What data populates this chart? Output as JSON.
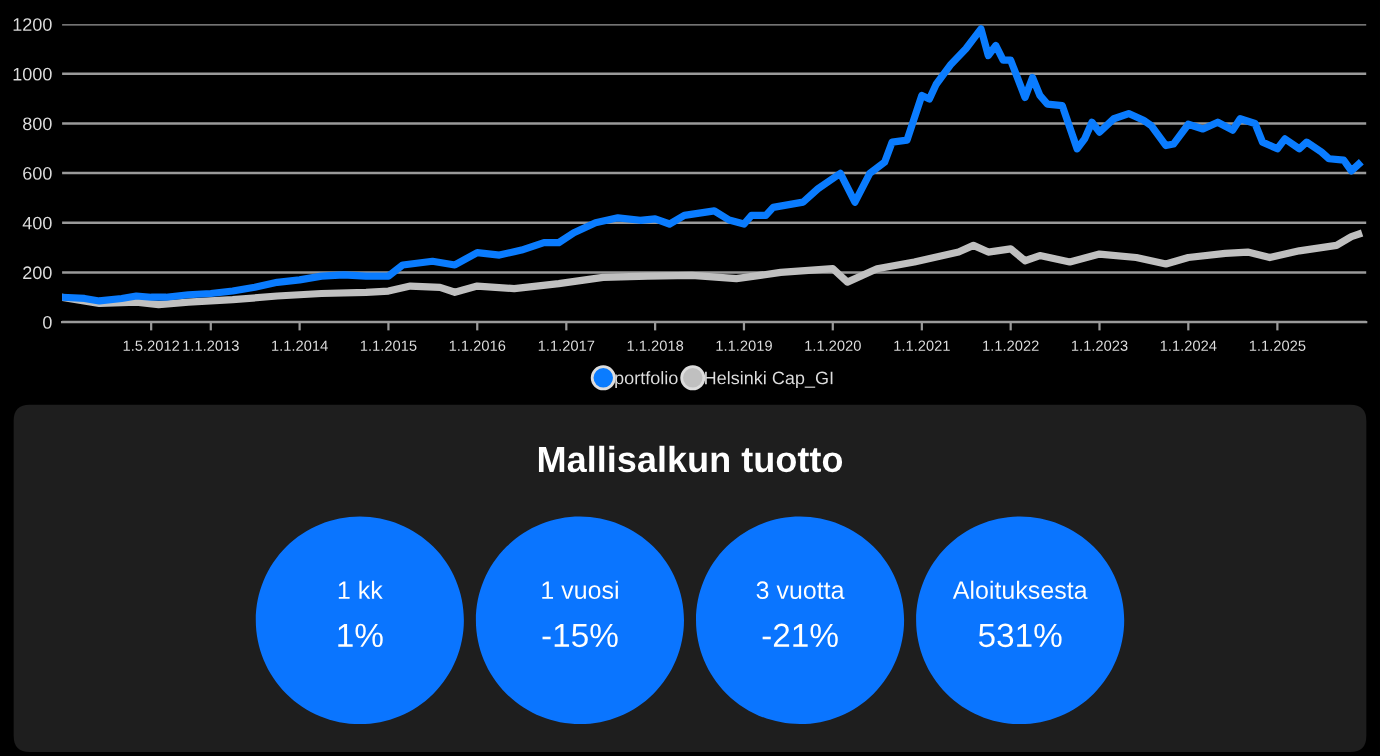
{
  "chart_data": [
    {
      "type": "line",
      "ylim": [
        0,
        1200
      ],
      "yticks": [
        0,
        200,
        400,
        600,
        800,
        1000,
        1200
      ],
      "xlim": [
        "2011-05",
        "2026-01"
      ],
      "xticks": [
        {
          "value": "2012-05-01",
          "label": "1.5.2012"
        },
        {
          "value": "2013-01-01",
          "label": "1.1.2013"
        },
        {
          "value": "2014-01-01",
          "label": "1.1.2014"
        },
        {
          "value": "2015-01-01",
          "label": "1.1.2015"
        },
        {
          "value": "2016-01-01",
          "label": "1.1.2016"
        },
        {
          "value": "2017-01-01",
          "label": "1.1.2017"
        },
        {
          "value": "2018-01-01",
          "label": "1.1.2018"
        },
        {
          "value": "2019-01-01",
          "label": "1.1.2019"
        },
        {
          "value": "2020-01-01",
          "label": "1.1.2020"
        },
        {
          "value": "2021-01-01",
          "label": "1.1.2021"
        },
        {
          "value": "2022-01-01",
          "label": "1.1.2022"
        },
        {
          "value": "2023-01-01",
          "label": "1.1.2023"
        },
        {
          "value": "2024-01-01",
          "label": "1.1.2024"
        },
        {
          "value": "2025-01-01",
          "label": "1.1.2025"
        }
      ],
      "grid": "y",
      "legend": "bottom",
      "marker": "none",
      "line_style": "solid",
      "series": [
        {
          "name": "portfolio",
          "color": "#0a7cff",
          "x": [
            "2011-05",
            "2011-08",
            "2011-10",
            "2012-01",
            "2012-03",
            "2012-05",
            "2012-07",
            "2012-10",
            "2013-01",
            "2013-04",
            "2013-07",
            "2013-10",
            "2014-01",
            "2014-04",
            "2014-07",
            "2014-10",
            "2015-01",
            "2015-03",
            "2015-07",
            "2015-10",
            "2016-01",
            "2016-04",
            "2016-07",
            "2016-10",
            "2016-12",
            "2017-02",
            "2017-05",
            "2017-08",
            "2017-11",
            "2018-01",
            "2018-03",
            "2018-05",
            "2018-09",
            "2018-11",
            "2019-01",
            "2019-02",
            "2019-04",
            "2019-05",
            "2019-09",
            "2019-11",
            "2020-02",
            "2020-04",
            "2020-06",
            "2020-08",
            "2020-09",
            "2020-11",
            "2021-01",
            "2021-02",
            "2021-03",
            "2021-05",
            "2021-07",
            "2021-09",
            "2021-10",
            "2021-11",
            "2021-12",
            "2022-01",
            "2022-03",
            "2022-04",
            "2022-05",
            "2022-06",
            "2022-08",
            "2022-10",
            "2022-11",
            "2022-12",
            "2023-01",
            "2023-03",
            "2023-05",
            "2023-07",
            "2023-08",
            "2023-10",
            "2023-11",
            "2024-01",
            "2024-03",
            "2024-05",
            "2024-07",
            "2024-08",
            "2024-10",
            "2024-11",
            "2025-01",
            "2025-02",
            "2025-04",
            "2025-05",
            "2025-07",
            "2025-08",
            "2025-10",
            "2025-11",
            "2025-12"
          ],
          "values": [
            100,
            95,
            85,
            95,
            105,
            100,
            100,
            110,
            115,
            125,
            140,
            160,
            170,
            185,
            190,
            185,
            185,
            230,
            245,
            230,
            280,
            270,
            290,
            320,
            320,
            360,
            400,
            420,
            410,
            416,
            395,
            430,
            448,
            411,
            395,
            430,
            430,
            462,
            483,
            537,
            599,
            483,
            599,
            644,
            725,
            733,
            913,
            899,
            958,
            1039,
            1101,
            1181,
            1074,
            1114,
            1055,
            1055,
            905,
            985,
            913,
            878,
            872,
            698,
            738,
            805,
            765,
            819,
            840,
            813,
            792,
            711,
            717,
            797,
            778,
            805,
            773,
            819,
            800,
            725,
            698,
            738,
            698,
            725,
            685,
            658,
            652,
            609,
            636
          ]
        },
        {
          "name": "Helsinki Cap_GI",
          "color": "#c0c0c0",
          "x": [
            "2011-05",
            "2011-10",
            "2012-03",
            "2012-06",
            "2012-10",
            "2013-04",
            "2013-10",
            "2014-04",
            "2014-10",
            "2015-01",
            "2015-04",
            "2015-08",
            "2015-10",
            "2016-01",
            "2016-06",
            "2016-12",
            "2017-06",
            "2017-12",
            "2018-06",
            "2018-12",
            "2019-06",
            "2020-01",
            "2020-03",
            "2020-07",
            "2020-12",
            "2021-06",
            "2021-08",
            "2021-10",
            "2022-01",
            "2022-03",
            "2022-05",
            "2022-09",
            "2023-01",
            "2023-06",
            "2023-10",
            "2024-01",
            "2024-06",
            "2024-09",
            "2024-12",
            "2025-04",
            "2025-09",
            "2025-11",
            "2025-12"
          ],
          "values": [
            100,
            75,
            80,
            70,
            80,
            90,
            105,
            115,
            120,
            125,
            145,
            140,
            120,
            145,
            135,
            155,
            180,
            185,
            188,
            175,
            200,
            215,
            161,
            215,
            242,
            282,
            309,
            282,
            295,
            247,
            268,
            242,
            274,
            260,
            234,
            260,
            277,
            282,
            260,
            287,
            309,
            344,
            354
          ]
        }
      ]
    },
    {
      "type": "other",
      "title": "Mallisalkun tuotto",
      "annotations": [
        "1 kk",
        "1%",
        "1 vuosi",
        "-15%",
        "3 vuotta",
        "-21%",
        "Aloituksesta",
        "531%"
      ],
      "color": "#0a75ff"
    }
  ]
}
